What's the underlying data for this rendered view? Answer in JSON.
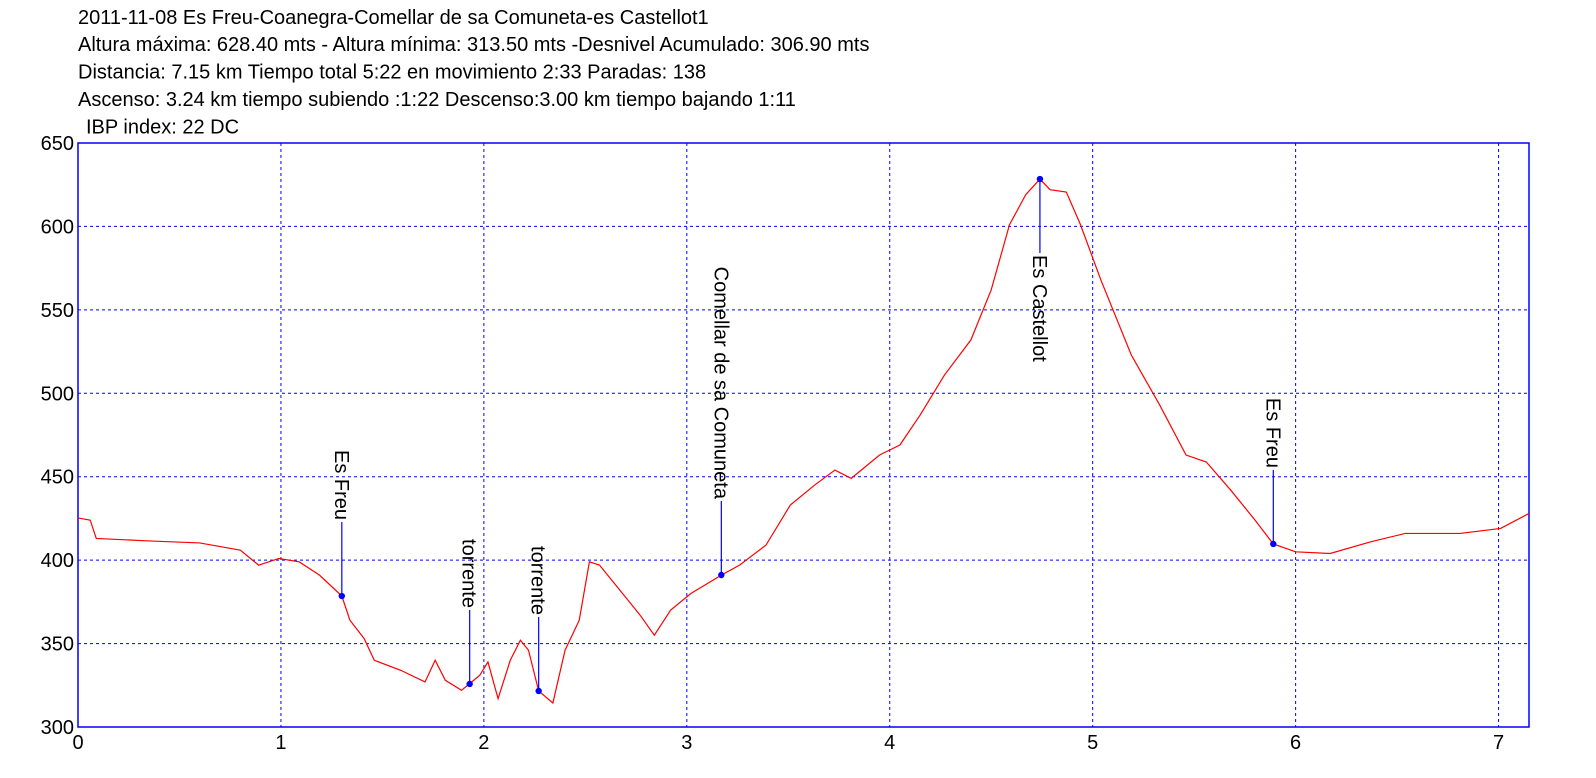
{
  "chart_data": {
    "type": "line",
    "title": "2011-11-08 Es Freu-Coanegra-Comellar de sa Comuneta-es Castellot1",
    "subtitle_lines": [
      "Altura máxima: 628.40 mts - Altura mínima: 313.50 mts -Desnivel Acumulado: 306.90 mts",
      "Distancia: 7.15 km  Tiempo total 5:22  en movimiento 2:33 Paradas: 138",
      "Ascenso: 3.24 km  tiempo subiendo :1:22  Descenso:3.00 km tiempo bajando 1:11",
      "IBP index: 22 DC"
    ],
    "x": [
      0,
      0.06,
      0.09,
      0.35,
      0.6,
      0.8,
      0.89,
      0.99,
      1.09,
      1.19,
      1.3,
      1.34,
      1.41,
      1.46,
      1.59,
      1.71,
      1.76,
      1.81,
      1.89,
      1.93,
      1.98,
      2.02,
      2.07,
      2.13,
      2.18,
      2.22,
      2.27,
      2.34,
      2.4,
      2.47,
      2.52,
      2.57,
      2.67,
      2.77,
      2.84,
      2.92,
      3.02,
      3.17,
      3.26,
      3.39,
      3.51,
      3.63,
      3.73,
      3.81,
      3.95,
      4.05,
      4.15,
      4.27,
      4.4,
      4.5,
      4.59,
      4.67,
      4.74,
      4.79,
      4.87,
      4.94,
      5.04,
      5.19,
      5.33,
      5.46,
      5.56,
      5.68,
      5.8,
      5.89,
      6.0,
      6.17,
      6.37,
      6.54,
      6.81,
      7.01,
      7.15
    ],
    "values": [
      425.3,
      424,
      413,
      411.5,
      410.3,
      406,
      397,
      401,
      399,
      391,
      378.5,
      364,
      353,
      340,
      334,
      327,
      340,
      328,
      322,
      326,
      331,
      339,
      317,
      340,
      352,
      346,
      321.6,
      314.4,
      346,
      364,
      399,
      397,
      382,
      367,
      355,
      370,
      380,
      391,
      397,
      409,
      433,
      445,
      454,
      449,
      463,
      469,
      487,
      511,
      532,
      562,
      601,
      619,
      628.4,
      622,
      620.6,
      601,
      568,
      523,
      493,
      463,
      458.8,
      442,
      424,
      409.7,
      405,
      404,
      411,
      416,
      416,
      419,
      428
    ],
    "color": "#ff0000",
    "annotations": [
      {
        "label": "Es Freu",
        "x": 1.3,
        "y": 378.5
      },
      {
        "label": "torrente",
        "x": 1.93,
        "y": 325.8
      },
      {
        "label": "torrente",
        "x": 2.27,
        "y": 321.6
      },
      {
        "label": "Comellar de sa Comuneta",
        "x": 3.17,
        "y": 391.1
      },
      {
        "label": "Es Castellot",
        "x": 4.74,
        "y": 628.4
      },
      {
        "label": "Es Freu",
        "x": 5.89,
        "y": 409.7
      }
    ],
    "annotation_color": "#0000ff",
    "xlim": [
      0,
      7.15
    ],
    "ylim": [
      300,
      650
    ],
    "xticks": [
      0,
      1,
      2,
      3,
      4,
      5,
      6,
      7
    ],
    "yticks": [
      300,
      350,
      400,
      450,
      500,
      550,
      600,
      650
    ],
    "grid": true,
    "grid_color": "#0000ff"
  }
}
